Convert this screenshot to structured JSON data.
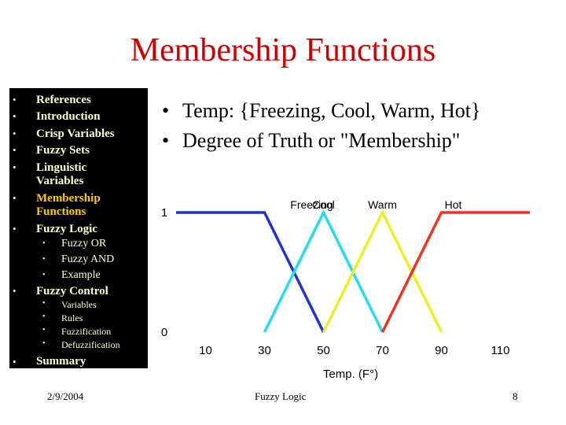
{
  "slide": {
    "title": "Membership Functions",
    "bullet_char": "•"
  },
  "sidebar": {
    "items": [
      {
        "label": "References"
      },
      {
        "label": "Introduction"
      },
      {
        "label": "Crisp Variables"
      },
      {
        "label": "Fuzzy Sets"
      },
      {
        "label": "Linguistic Variables",
        "line1": "Linguistic",
        "line2": "Variables"
      },
      {
        "label": "Membership Functions",
        "line1": "Membership",
        "line2": "Functions"
      },
      {
        "label": "Fuzzy Logic",
        "children": [
          "Fuzzy OR",
          "Fuzzy AND",
          "Example"
        ]
      },
      {
        "label": "Fuzzy Control",
        "children": [
          "Variables",
          "Rules",
          "Fuzzification",
          "Defuzzification"
        ]
      },
      {
        "label": "Summary"
      }
    ]
  },
  "content": {
    "bullets": [
      "Temp: {Freezing, Cool, Warm, Hot}",
      "Degree of Truth or \"Membership\""
    ]
  },
  "chart_data": {
    "type": "line",
    "xlabel": "Temp. (F°)",
    "ylabel": "",
    "x_ticks": [
      "10",
      "30",
      "50",
      "70",
      "90",
      "110"
    ],
    "y_ticks": [
      "0",
      "1"
    ],
    "xlim": [
      0,
      120
    ],
    "ylim": [
      0,
      1
    ],
    "series": [
      {
        "name": "Freezing",
        "color": "#2233cc",
        "points": [
          [
            0,
            1
          ],
          [
            30,
            1
          ],
          [
            50,
            0
          ]
        ]
      },
      {
        "name": "Cool",
        "color": "#22ddee",
        "points": [
          [
            30,
            0
          ],
          [
            50,
            1
          ],
          [
            70,
            0
          ]
        ]
      },
      {
        "name": "Warm",
        "color": "#eeee22",
        "points": [
          [
            50,
            0
          ],
          [
            70,
            1
          ],
          [
            90,
            0
          ]
        ]
      },
      {
        "name": "Hot",
        "color": "#ee3322",
        "points": [
          [
            70,
            0
          ],
          [
            90,
            1
          ],
          [
            120,
            1
          ]
        ]
      }
    ]
  },
  "footer": {
    "date": "2/9/2004",
    "center": "Fuzzy Logic",
    "page": "8"
  },
  "colors": {
    "title": "#cc0000",
    "sidebar_bg": "#000000",
    "sidebar_text": "#ffffcc",
    "sidebar_active": "#ffcc00"
  }
}
